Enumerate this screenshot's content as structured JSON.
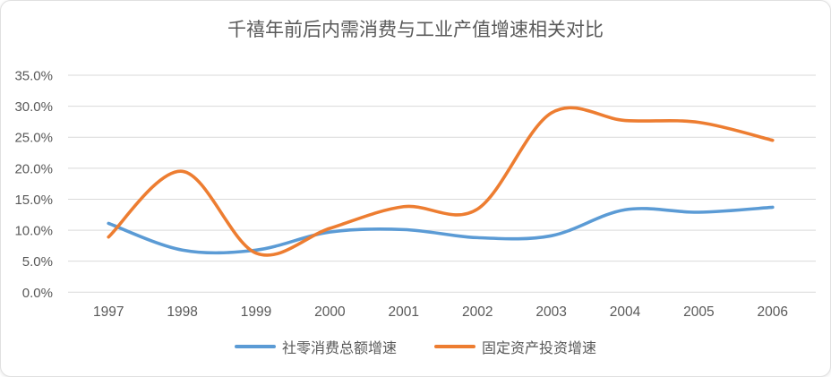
{
  "chart_data": {
    "type": "line",
    "title": "千禧年前后内需消费与工业产值增速相关对比",
    "categories": [
      "1997",
      "1998",
      "1999",
      "2000",
      "2001",
      "2002",
      "2003",
      "2004",
      "2005",
      "2006"
    ],
    "series": [
      {
        "name": "社零消费总额增速",
        "color": "#5B9BD5",
        "values": [
          11.1,
          6.8,
          6.8,
          9.7,
          10.1,
          8.8,
          9.1,
          13.3,
          12.9,
          13.7
        ]
      },
      {
        "name": "固定资产投资增速",
        "color": "#ED7D31",
        "values": [
          8.9,
          19.5,
          6.3,
          10.3,
          13.8,
          13.4,
          28.9,
          27.7,
          27.4,
          24.5
        ]
      }
    ],
    "xlabel": "",
    "ylabel": "",
    "ylim": [
      0,
      35
    ],
    "ytick_step": 5,
    "ytick_labels": [
      "0.0%",
      "5.0%",
      "10.0%",
      "15.0%",
      "20.0%",
      "25.0%",
      "30.0%",
      "35.0%"
    ],
    "grid": true,
    "smooth": true,
    "legend_position": "bottom",
    "colors": {
      "text": "#595959",
      "gridline": "#d9d9d9",
      "background": "#ffffff"
    }
  }
}
